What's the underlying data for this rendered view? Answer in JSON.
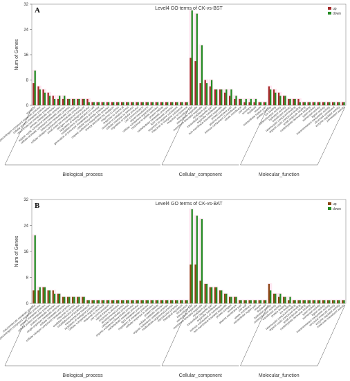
{
  "colors": {
    "up": "#a52a2a",
    "down": "#228b22",
    "up_b": "#8b4513",
    "down_b": "#228b22",
    "shade_bp": "#ffd6e7",
    "shade_cc": "#ffd6e7",
    "shade_mf": "#ffd6e7"
  },
  "chart_data": [
    {
      "type": "bar",
      "panel_label": "A",
      "title": "Level4 GO terms of CK-vs-BST",
      "ylabel": "Num of Genes",
      "ylim": [
        0,
        32
      ],
      "yticks": [
        0,
        8,
        16,
        24,
        32
      ],
      "legend": [
        "up",
        "down"
      ],
      "legend_position": "top-right",
      "groups": [
        {
          "name": "Biological_process",
          "start": 0,
          "end": 31
        },
        {
          "name": "Cellular_component",
          "start": 32,
          "end": 47
        },
        {
          "name": "Molecular_function",
          "start": 48,
          "end": 63
        }
      ],
      "categories": [
        "transport",
        "organonitrogen compound metabolic process",
        "cellular protein metabolic process",
        "macromolecule metabolic process",
        "primary metabolic process",
        "organic cyclic compound metabolic process",
        "cellular aromatic compound metabolic process",
        "heterocycle metabolic process",
        "cellular nitrogen compound metabolic process",
        "small molecule metabolic process",
        "nitrogen compound transport",
        "regulation of biological process",
        "establishment of localization in cell",
        "generation of precursor metabolites and energy",
        "cellular biosynthetic process",
        "organic substance biosynthetic process",
        "energy derivation by oxidation",
        "response to stress",
        "response to chemical",
        "response to oxidative stress",
        "cellular response to stimulus",
        "regulation of cellular process",
        "cell communication",
        "signal transduction",
        "cellular component organization",
        "response to abiotic stimulus",
        "protein folding",
        "carbohydrate metabolic process",
        "lipid metabolic process",
        "response to organic substance",
        "response to inorganic substance",
        "response to hormone",
        "intracellular part",
        "intracellular organelle",
        "membrane-bounded organelle",
        "cytoplasm part",
        "intracellular organelle part",
        "organelle membrane",
        "non-membrane-bounded organelle",
        "protein complex",
        "plasma membrane part",
        "intrinsic component of membrane",
        "whole membrane",
        "cell wall",
        "envelope",
        "thylakoid",
        "vesicle",
        "extracellular region part",
        "protein binding",
        "ion binding",
        "oxidoreductase activity",
        "hydrolase activity",
        "transferase activity",
        "heterocyclic compound binding",
        "organic cyclic compound binding",
        "small molecule binding",
        "carbohydrate derivative binding",
        "lyase activity",
        "isomerase activity",
        "ligase activity",
        "transmembrane transporter activity",
        "structural constituent",
        "enzyme regulator activity",
        "peroxidase activity"
      ],
      "series": [
        {
          "name": "up",
          "values": [
            7,
            6,
            5,
            4,
            3,
            2,
            2,
            2,
            2,
            2,
            2,
            2,
            1,
            1,
            1,
            1,
            1,
            1,
            1,
            1,
            1,
            1,
            1,
            1,
            1,
            1,
            1,
            1,
            1,
            1,
            1,
            1,
            15,
            14,
            7,
            8,
            6,
            5,
            5,
            4,
            3,
            2,
            2,
            1,
            1,
            1,
            1,
            1,
            6,
            5,
            4,
            3,
            2,
            2,
            2,
            1,
            1,
            1,
            1,
            1,
            1,
            1,
            1,
            1
          ]
        },
        {
          "name": "down",
          "values": [
            11,
            5,
            4,
            3,
            2,
            3,
            3,
            2,
            2,
            2,
            2,
            1,
            1,
            1,
            1,
            1,
            1,
            1,
            1,
            1,
            1,
            1,
            1,
            1,
            1,
            1,
            1,
            1,
            1,
            1,
            1,
            1,
            30,
            29,
            19,
            7,
            8,
            5,
            5,
            5,
            5,
            3,
            2,
            2,
            2,
            2,
            1,
            1,
            5,
            4,
            3,
            3,
            2,
            2,
            1,
            1,
            1,
            1,
            1,
            1,
            1,
            1,
            1,
            1
          ]
        }
      ]
    },
    {
      "type": "bar",
      "panel_label": "B",
      "title": "Level4 GO terms of CK-vs-BAT",
      "ylabel": "Num of Genes",
      "ylim": [
        0,
        32
      ],
      "yticks": [
        0,
        8,
        16,
        24,
        32
      ],
      "legend": [
        "up",
        "down"
      ],
      "legend_position": "top-right",
      "groups": [
        {
          "name": "Biological_process",
          "start": 0,
          "end": 31
        },
        {
          "name": "Cellular_component",
          "start": 32,
          "end": 47
        },
        {
          "name": "Molecular_function",
          "start": 48,
          "end": 63
        }
      ],
      "categories": [
        "macromolecule metabolic process",
        "organonitrogen compound metabolic process",
        "primary metabolic process",
        "cellular protein metabolic process",
        "protein metabolic process",
        "single-organism metabolic process",
        "cellular metabolic process",
        "cellular nitrogen compound metabolic process",
        "response to stress",
        "oxidation-reduction process",
        "establishment of localization",
        "transmembrane transport",
        "regulation of biological process",
        "cellular component organization",
        "response to chemical",
        "cell communication",
        "signal transduction",
        "response to stimulus",
        "developmental process",
        "cellular biosynthetic process",
        "organic substance biosynthetic process",
        "carbohydrate metabolic process",
        "lipid metabolic process",
        "regulation of metabolic process",
        "cellular response to stimulus",
        "protein folding",
        "cellular catabolic process",
        "organic substance catabolic process",
        "multicellular organismal process",
        "reproductive process",
        "biological regulation",
        "localization",
        "intracellular part",
        "intracellular organelle",
        "membrane-bounded organelle",
        "cytoplasm part",
        "intracellular organelle part",
        "organelle membrane",
        "intrinsic component of membrane",
        "non-membrane-bounded organelle",
        "protein complex",
        "envelope",
        "plasma membrane part",
        "cell wall",
        "whole membrane",
        "extracellular region part",
        "vesicle",
        "thylakoid",
        "hydrolase activity",
        "oxidoreductase activity",
        "transferase activity",
        "protein binding",
        "ion binding",
        "heterocyclic compound binding",
        "organic cyclic compound binding",
        "small molecule binding",
        "carbohydrate derivative binding",
        "lyase activity",
        "isomerase activity",
        "ligase activity",
        "transmembrane transporter activity",
        "structural molecule activity",
        "enzyme regulator activity",
        "molecular transducer activity"
      ],
      "series": [
        {
          "name": "up",
          "values": [
            4,
            4,
            5,
            4,
            4,
            3,
            2,
            2,
            2,
            2,
            2,
            1,
            1,
            1,
            1,
            1,
            1,
            1,
            1,
            1,
            1,
            1,
            1,
            1,
            1,
            1,
            1,
            1,
            1,
            1,
            1,
            1,
            12,
            12,
            7,
            6,
            5,
            5,
            4,
            3,
            2,
            2,
            1,
            1,
            1,
            1,
            1,
            1,
            6,
            3,
            2,
            2,
            1,
            1,
            1,
            1,
            1,
            1,
            1,
            1,
            1,
            1,
            1,
            1
          ]
        },
        {
          "name": "down",
          "values": [
            21,
            5,
            5,
            4,
            3,
            3,
            2,
            2,
            2,
            2,
            2,
            1,
            1,
            1,
            1,
            1,
            1,
            1,
            1,
            1,
            1,
            1,
            1,
            1,
            1,
            1,
            1,
            1,
            1,
            1,
            1,
            1,
            29,
            27,
            26,
            6,
            5,
            5,
            4,
            3,
            2,
            2,
            1,
            1,
            1,
            1,
            1,
            1,
            4,
            3,
            3,
            2,
            2,
            1,
            1,
            1,
            1,
            1,
            1,
            1,
            1,
            1,
            1,
            1
          ]
        }
      ]
    }
  ]
}
